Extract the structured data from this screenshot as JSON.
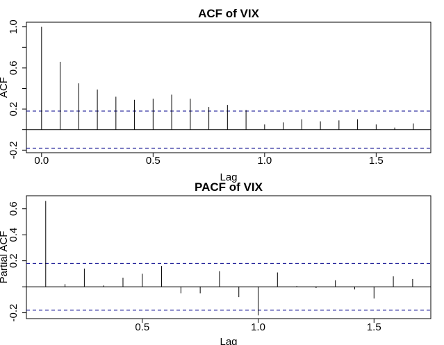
{
  "chart_data": [
    {
      "type": "bar",
      "title": "ACF of VIX",
      "xlabel": "Lag",
      "ylabel": "ACF",
      "xlim": [
        -0.07,
        1.75
      ],
      "ylim": [
        -0.2,
        1.0
      ],
      "x_ticks": [
        "0.0",
        "0.5",
        "1.0",
        "1.5"
      ],
      "y_ticks": [
        "-0.2",
        "0.2",
        "0.6",
        "1.0"
      ],
      "confidence_bound": 0.18,
      "confidence_line_color": "#00008b",
      "series": [
        {
          "x": [
            0.0,
            0.0833,
            0.1667,
            0.25,
            0.3333,
            0.4167,
            0.5,
            0.5833,
            0.6667,
            0.75,
            0.8333,
            0.9167,
            1.0,
            1.0833,
            1.1667,
            1.25,
            1.3333,
            1.4167,
            1.5,
            1.5833,
            1.6667
          ],
          "values": [
            1.0,
            0.66,
            0.45,
            0.39,
            0.32,
            0.29,
            0.3,
            0.34,
            0.3,
            0.22,
            0.24,
            0.19,
            0.05,
            0.07,
            0.1,
            0.08,
            0.09,
            0.1,
            0.05,
            0.02,
            0.06
          ]
        }
      ]
    },
    {
      "type": "bar",
      "title": "PACF of VIX",
      "xlabel": "Lag",
      "ylabel": "Partial ACF",
      "xlim": [
        0.0,
        1.75
      ],
      "ylim": [
        -0.2,
        0.66
      ],
      "x_ticks": [
        "0.5",
        "1.0",
        "1.5"
      ],
      "y_ticks": [
        "-0.2",
        "0.2",
        "0.4",
        "0.6"
      ],
      "confidence_bound": 0.18,
      "confidence_line_color": "#00008b",
      "series": [
        {
          "x": [
            0.0833,
            0.1667,
            0.25,
            0.3333,
            0.4167,
            0.5,
            0.5833,
            0.6667,
            0.75,
            0.8333,
            0.9167,
            1.0,
            1.0833,
            1.1667,
            1.25,
            1.3333,
            1.4167,
            1.5,
            1.5833,
            1.6667
          ],
          "values": [
            0.66,
            0.02,
            0.14,
            0.01,
            0.07,
            0.1,
            0.16,
            -0.05,
            -0.05,
            0.12,
            -0.08,
            -0.22,
            0.11,
            0.005,
            -0.01,
            0.05,
            -0.02,
            -0.09,
            0.08,
            0.06
          ]
        }
      ]
    }
  ]
}
